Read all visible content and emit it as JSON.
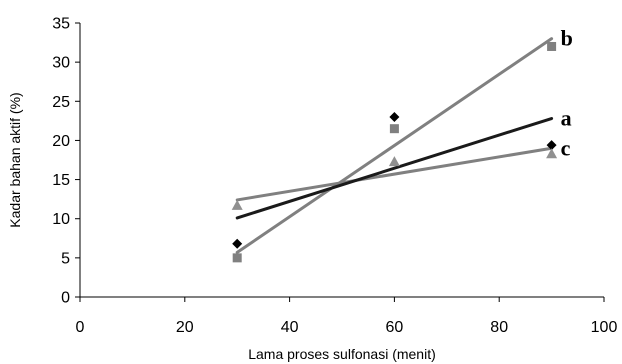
{
  "chart_data": {
    "type": "scatter",
    "title": "",
    "xlabel": "Lama proses sulfonasi (menit)",
    "ylabel": "Kadar bahan aktif (%)",
    "xlim": [
      0,
      100
    ],
    "ylim": [
      0,
      35
    ],
    "xticks": [
      0,
      20,
      40,
      60,
      80,
      100
    ],
    "yticks": [
      0,
      5,
      10,
      15,
      20,
      25,
      30,
      35
    ],
    "grid": false,
    "series": [
      {
        "name": "a",
        "marker": "diamond",
        "marker_color": "#000000",
        "line_color": "#1a1a1a",
        "points": [
          {
            "x": 30,
            "y": 6.8
          },
          {
            "x": 60,
            "y": 23.0
          },
          {
            "x": 90,
            "y": 19.4
          }
        ],
        "trendline": [
          {
            "x": 30,
            "y": 10.1
          },
          {
            "x": 90,
            "y": 22.8
          }
        ]
      },
      {
        "name": "b",
        "marker": "square",
        "marker_color": "#808080",
        "line_color": "#808080",
        "points": [
          {
            "x": 30,
            "y": 5.0
          },
          {
            "x": 60,
            "y": 21.5
          },
          {
            "x": 90,
            "y": 32.0
          }
        ],
        "trendline": [
          {
            "x": 30,
            "y": 5.7
          },
          {
            "x": 90,
            "y": 33.0
          }
        ]
      },
      {
        "name": "c",
        "marker": "triangle",
        "marker_color": "#909090",
        "line_color": "#808080",
        "points": [
          {
            "x": 30,
            "y": 11.7
          },
          {
            "x": 60,
            "y": 17.3
          },
          {
            "x": 90,
            "y": 18.3
          }
        ],
        "trendline": [
          {
            "x": 30,
            "y": 12.4
          },
          {
            "x": 90,
            "y": 19.0
          }
        ]
      }
    ]
  }
}
